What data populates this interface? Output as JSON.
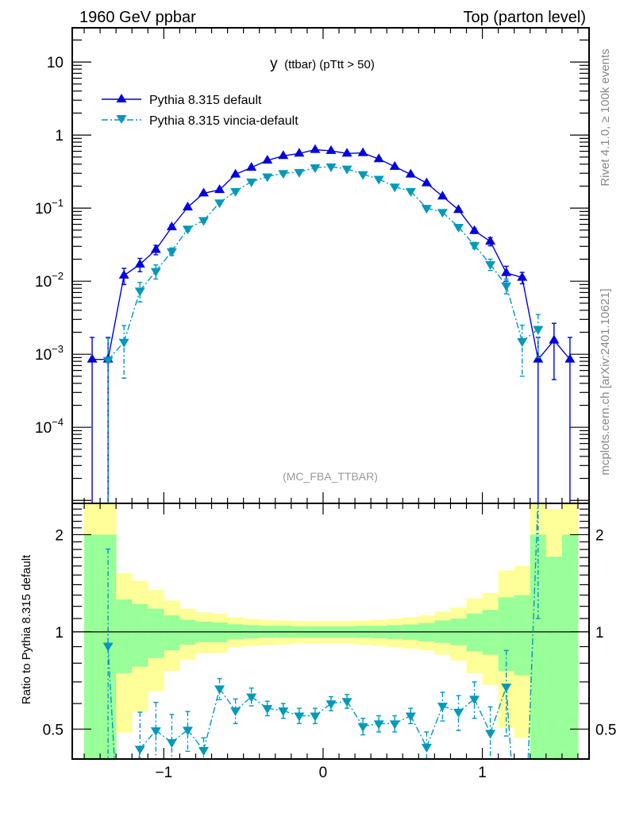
{
  "header": {
    "left": "1960 GeV ppbar",
    "right": "Top (parton level)"
  },
  "side_text": {
    "rivet": "Rivet 4.1.0, ≥ 100k events",
    "mcplots": "mcplots.cern.ch [arXiv:2401.10621]"
  },
  "watermark": "(MC_FBA_TTBAR)",
  "colors": {
    "default": "#0000dd",
    "vincia": "#0099bb",
    "band_stat": "#99ff99",
    "band_total": "#ffff99",
    "side_text": "#888888",
    "watermark": "#999999"
  },
  "chart_data": [
    {
      "type": "line",
      "scale_y": "log",
      "title_main": "y",
      "title_rest": "(ttbar) (pTtt > 50)",
      "xlim": [
        -1.575,
        1.67
      ],
      "ylim": [
        9.1e-06,
        29.4
      ],
      "x_ticks": [
        {
          "v": -1,
          "label": "−1"
        },
        {
          "v": 0,
          "label": "0"
        },
        {
          "v": 1,
          "label": "1"
        }
      ],
      "y_ticks": [
        {
          "v": 10,
          "base": "10",
          "exp": ""
        },
        {
          "v": 1,
          "base": "1",
          "exp": ""
        },
        {
          "v": 0.1,
          "base": "10",
          "exp": "−1"
        },
        {
          "v": 0.01,
          "base": "10",
          "exp": "−2"
        },
        {
          "v": 0.001,
          "base": "10",
          "exp": "−3"
        },
        {
          "v": 0.0001,
          "base": "10",
          "exp": "−4"
        }
      ],
      "legend_position": "top-left",
      "x": [
        -1.45,
        -1.35,
        -1.25,
        -1.15,
        -1.05,
        -0.95,
        -0.85,
        -0.75,
        -0.65,
        -0.55,
        -0.45,
        -0.35,
        -0.25,
        -0.15,
        -0.05,
        0.05,
        0.15,
        0.25,
        0.35,
        0.45,
        0.55,
        0.65,
        0.75,
        0.85,
        0.95,
        1.05,
        1.15,
        1.25,
        1.35,
        1.45,
        1.55
      ],
      "series": [
        {
          "name": "Pythia 8.315 default",
          "marker": "triangle-up",
          "line": "solid",
          "values": [
            0.00085,
            0.00085,
            0.012,
            0.017,
            0.027,
            0.055,
            0.103,
            0.16,
            0.178,
            0.29,
            0.36,
            0.45,
            0.52,
            0.56,
            0.63,
            0.61,
            0.56,
            0.57,
            0.47,
            0.37,
            0.29,
            0.22,
            0.145,
            0.095,
            0.049,
            0.035,
            0.013,
            0.0112,
            0.00085,
            0.00155,
            0.00085
          ],
          "errors": [
            0.00085,
            0.00085,
            0.003,
            0.0035,
            0.004,
            0.004,
            0.005,
            0.006,
            0.007,
            0.01,
            0.011,
            0.013,
            0.014,
            0.015,
            0.016,
            0.016,
            0.015,
            0.015,
            0.013,
            0.011,
            0.01,
            0.008,
            0.006,
            0.005,
            0.004,
            0.0045,
            0.003,
            0.002,
            0.00085,
            0.0011,
            0.00085
          ]
        },
        {
          "name": "Pythia 8.315 vincia-default",
          "marker": "triangle-down",
          "line": "dashdot",
          "values": [
            null,
            0.00083,
            0.00147,
            0.0074,
            0.0137,
            0.0255,
            0.052,
            0.068,
            0.119,
            0.17,
            0.23,
            0.27,
            0.3,
            0.31,
            0.36,
            0.37,
            0.345,
            0.29,
            0.25,
            0.196,
            0.17,
            0.1,
            0.088,
            0.055,
            0.031,
            0.017,
            0.0087,
            0.0015,
            0.0022,
            null,
            null
          ],
          "errors": [
            null,
            0.00083,
            0.001,
            0.0022,
            0.003,
            0.003,
            0.004,
            0.004,
            0.005,
            0.006,
            0.007,
            0.008,
            0.008,
            0.008,
            0.009,
            0.009,
            0.009,
            0.008,
            0.007,
            0.006,
            0.006,
            0.004,
            0.004,
            0.003,
            0.003,
            0.003,
            0.002,
            0.001,
            0.0013,
            null,
            null
          ]
        }
      ]
    },
    {
      "type": "line",
      "scale_y": "log",
      "ylabel": "Ratio to Pythia 8.315 default",
      "xlim": [
        -1.575,
        1.67
      ],
      "ylim": [
        0.404,
        2.5
      ],
      "x_ticks": [
        {
          "v": -1,
          "label": "−1"
        },
        {
          "v": 0,
          "label": "0"
        },
        {
          "v": 1,
          "label": "1"
        }
      ],
      "y_ticks": [
        {
          "v": 2,
          "label": "2"
        },
        {
          "v": 1,
          "label": "1"
        },
        {
          "v": 0.5,
          "label": "0.5"
        }
      ],
      "reference": 1,
      "band_edges": [
        -1.5,
        -1.4,
        -1.3,
        -1.2,
        -1.1,
        -1.0,
        -0.9,
        -0.8,
        -0.7,
        -0.6,
        -0.5,
        -0.4,
        -0.3,
        -0.2,
        -0.1,
        0.0,
        0.1,
        0.2,
        0.3,
        0.4,
        0.5,
        0.6,
        0.7,
        0.8,
        0.9,
        1.0,
        1.1,
        1.2,
        1.3,
        1.4,
        1.5,
        1.6
      ],
      "band_stat_hi": [
        2.0,
        2.0,
        1.26,
        1.22,
        1.18,
        1.125,
        1.09,
        1.076,
        1.07,
        1.056,
        1.05,
        1.045,
        1.045,
        1.04,
        1.04,
        1.04,
        1.04,
        1.045,
        1.045,
        1.05,
        1.055,
        1.065,
        1.085,
        1.1,
        1.14,
        1.17,
        1.28,
        1.3,
        2.0,
        1.71,
        2.0
      ],
      "band_stat_lo": [
        0.3,
        0.3,
        0.745,
        0.78,
        0.83,
        0.877,
        0.913,
        0.93,
        0.93,
        0.948,
        0.955,
        0.96,
        0.96,
        0.96,
        0.96,
        0.96,
        0.96,
        0.958,
        0.955,
        0.95,
        0.945,
        0.935,
        0.925,
        0.91,
        0.87,
        0.85,
        0.757,
        0.734,
        0.3,
        0.3,
        0.3
      ],
      "band_total_hi": [
        3,
        3,
        1.52,
        1.44,
        1.35,
        1.25,
        1.18,
        1.15,
        1.14,
        1.11,
        1.097,
        1.09,
        1.085,
        1.08,
        1.08,
        1.08,
        1.08,
        1.085,
        1.09,
        1.1,
        1.11,
        1.125,
        1.155,
        1.19,
        1.27,
        1.32,
        1.55,
        1.6,
        3,
        2.4,
        3
      ],
      "band_total_lo": [
        0.3,
        0.3,
        0.487,
        0.565,
        0.655,
        0.757,
        0.82,
        0.858,
        0.86,
        0.896,
        0.905,
        0.91,
        0.915,
        0.92,
        0.92,
        0.92,
        0.92,
        0.912,
        0.905,
        0.897,
        0.887,
        0.877,
        0.85,
        0.815,
        0.745,
        0.685,
        0.504,
        0.47,
        0.3,
        0.3,
        0.3
      ],
      "series": [
        {
          "name": "Pythia 8.315 vincia-default / Pythia 8.315 default",
          "x": [
            -1.35,
            -1.25,
            -1.15,
            -1.05,
            -0.95,
            -0.85,
            -0.75,
            -0.65,
            -0.55,
            -0.45,
            -0.35,
            -0.25,
            -0.15,
            -0.05,
            0.05,
            0.15,
            0.25,
            0.35,
            0.45,
            0.55,
            0.65,
            0.75,
            0.85,
            0.95,
            1.05,
            1.15,
            1.25,
            1.35
          ],
          "values": [
            0.905,
            0.12,
            0.434,
            0.495,
            0.455,
            0.497,
            0.43,
            0.667,
            0.57,
            0.63,
            0.58,
            0.57,
            0.55,
            0.55,
            0.6,
            0.61,
            0.51,
            0.52,
            0.52,
            0.55,
            0.44,
            0.59,
            0.565,
            0.62,
            0.486,
            0.676,
            0.13,
            2.6
          ],
          "errors": [
            0.9,
            0.1,
            0.13,
            0.11,
            0.1,
            0.07,
            0.04,
            0.05,
            0.05,
            0.04,
            0.03,
            0.03,
            0.03,
            0.03,
            0.03,
            0.03,
            0.03,
            0.03,
            0.03,
            0.03,
            0.05,
            0.06,
            0.07,
            0.08,
            0.1,
            0.2,
            0.1,
            1.5
          ]
        }
      ]
    }
  ]
}
